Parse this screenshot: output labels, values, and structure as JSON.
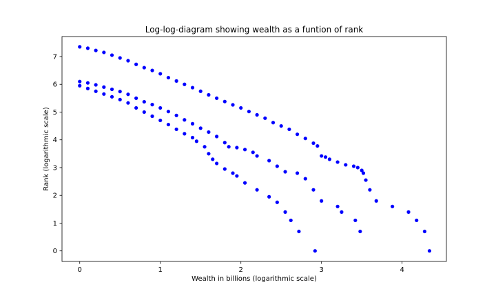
{
  "chart_data": {
    "type": "scatter",
    "title": "Log-log-diagram showing wealth as a funtion of rank",
    "xlabel": "Wealth in billions (logarithmic scale)",
    "ylabel": "Rank (logarithmic scale)",
    "xlim": [
      -0.22,
      4.55
    ],
    "ylim": [
      -0.38,
      7.72
    ],
    "xticks": [
      0,
      1,
      2,
      3,
      4
    ],
    "yticks": [
      0,
      1,
      2,
      3,
      4,
      5,
      6,
      7
    ],
    "grid": false,
    "marker_color": "#0000ff",
    "series": [
      {
        "x": [
          0,
          0.1,
          0.2,
          0.3,
          0.4,
          0.5,
          0.6,
          0.7,
          0.8,
          0.9,
          1.0,
          1.1,
          1.2,
          1.3,
          1.4,
          1.5,
          1.6,
          1.7,
          1.8,
          1.9,
          2.0,
          2.1,
          2.2,
          2.3,
          2.4,
          2.5,
          2.6,
          2.7,
          2.8,
          2.9,
          2.95,
          3.0,
          3.05,
          3.1,
          3.2,
          3.3,
          3.4,
          3.45,
          3.5,
          3.52,
          3.55,
          3.6,
          3.68,
          3.88,
          4.08,
          4.18,
          4.28,
          4.34
        ],
        "y": [
          7.35,
          7.3,
          7.22,
          7.15,
          7.05,
          6.95,
          6.85,
          6.72,
          6.6,
          6.5,
          6.38,
          6.24,
          6.12,
          6.0,
          5.88,
          5.75,
          5.62,
          5.5,
          5.38,
          5.26,
          5.15,
          5.02,
          4.9,
          4.78,
          4.62,
          4.5,
          4.38,
          4.2,
          4.05,
          3.88,
          3.78,
          3.42,
          3.38,
          3.3,
          3.2,
          3.1,
          3.05,
          3.0,
          2.9,
          2.8,
          2.55,
          2.2,
          1.8,
          1.6,
          1.4,
          1.1,
          0.7,
          0.0
        ]
      },
      {
        "x": [
          0,
          0.1,
          0.2,
          0.3,
          0.4,
          0.5,
          0.6,
          0.7,
          0.8,
          0.9,
          1.0,
          1.1,
          1.2,
          1.3,
          1.4,
          1.5,
          1.6,
          1.7,
          1.8,
          1.85,
          1.95,
          2.05,
          2.15,
          2.2,
          2.35,
          2.45,
          2.55,
          2.7,
          2.8,
          2.9,
          3.0,
          3.2,
          3.25,
          3.42,
          3.48
        ],
        "y": [
          6.1,
          6.05,
          5.98,
          5.9,
          5.82,
          5.74,
          5.64,
          5.5,
          5.37,
          5.27,
          5.15,
          5.02,
          4.88,
          4.72,
          4.58,
          4.42,
          4.28,
          4.12,
          3.9,
          3.75,
          3.72,
          3.65,
          3.55,
          3.42,
          3.25,
          3.05,
          2.85,
          2.8,
          2.6,
          2.2,
          1.8,
          1.6,
          1.4,
          1.1,
          0.7
        ]
      },
      {
        "x": [
          0,
          0.1,
          0.2,
          0.3,
          0.4,
          0.5,
          0.6,
          0.7,
          0.8,
          0.9,
          1.0,
          1.1,
          1.2,
          1.3,
          1.4,
          1.45,
          1.55,
          1.6,
          1.65,
          1.7,
          1.8,
          1.9,
          1.95,
          2.05,
          2.2,
          2.35,
          2.45,
          2.55,
          2.62,
          2.72,
          2.92
        ],
        "y": [
          5.95,
          5.85,
          5.75,
          5.65,
          5.55,
          5.45,
          5.33,
          5.15,
          5.0,
          4.85,
          4.7,
          4.55,
          4.38,
          4.22,
          4.08,
          3.95,
          3.75,
          3.5,
          3.3,
          3.15,
          2.95,
          2.8,
          2.7,
          2.45,
          2.2,
          1.95,
          1.75,
          1.4,
          1.1,
          0.7,
          0.0
        ]
      }
    ]
  }
}
